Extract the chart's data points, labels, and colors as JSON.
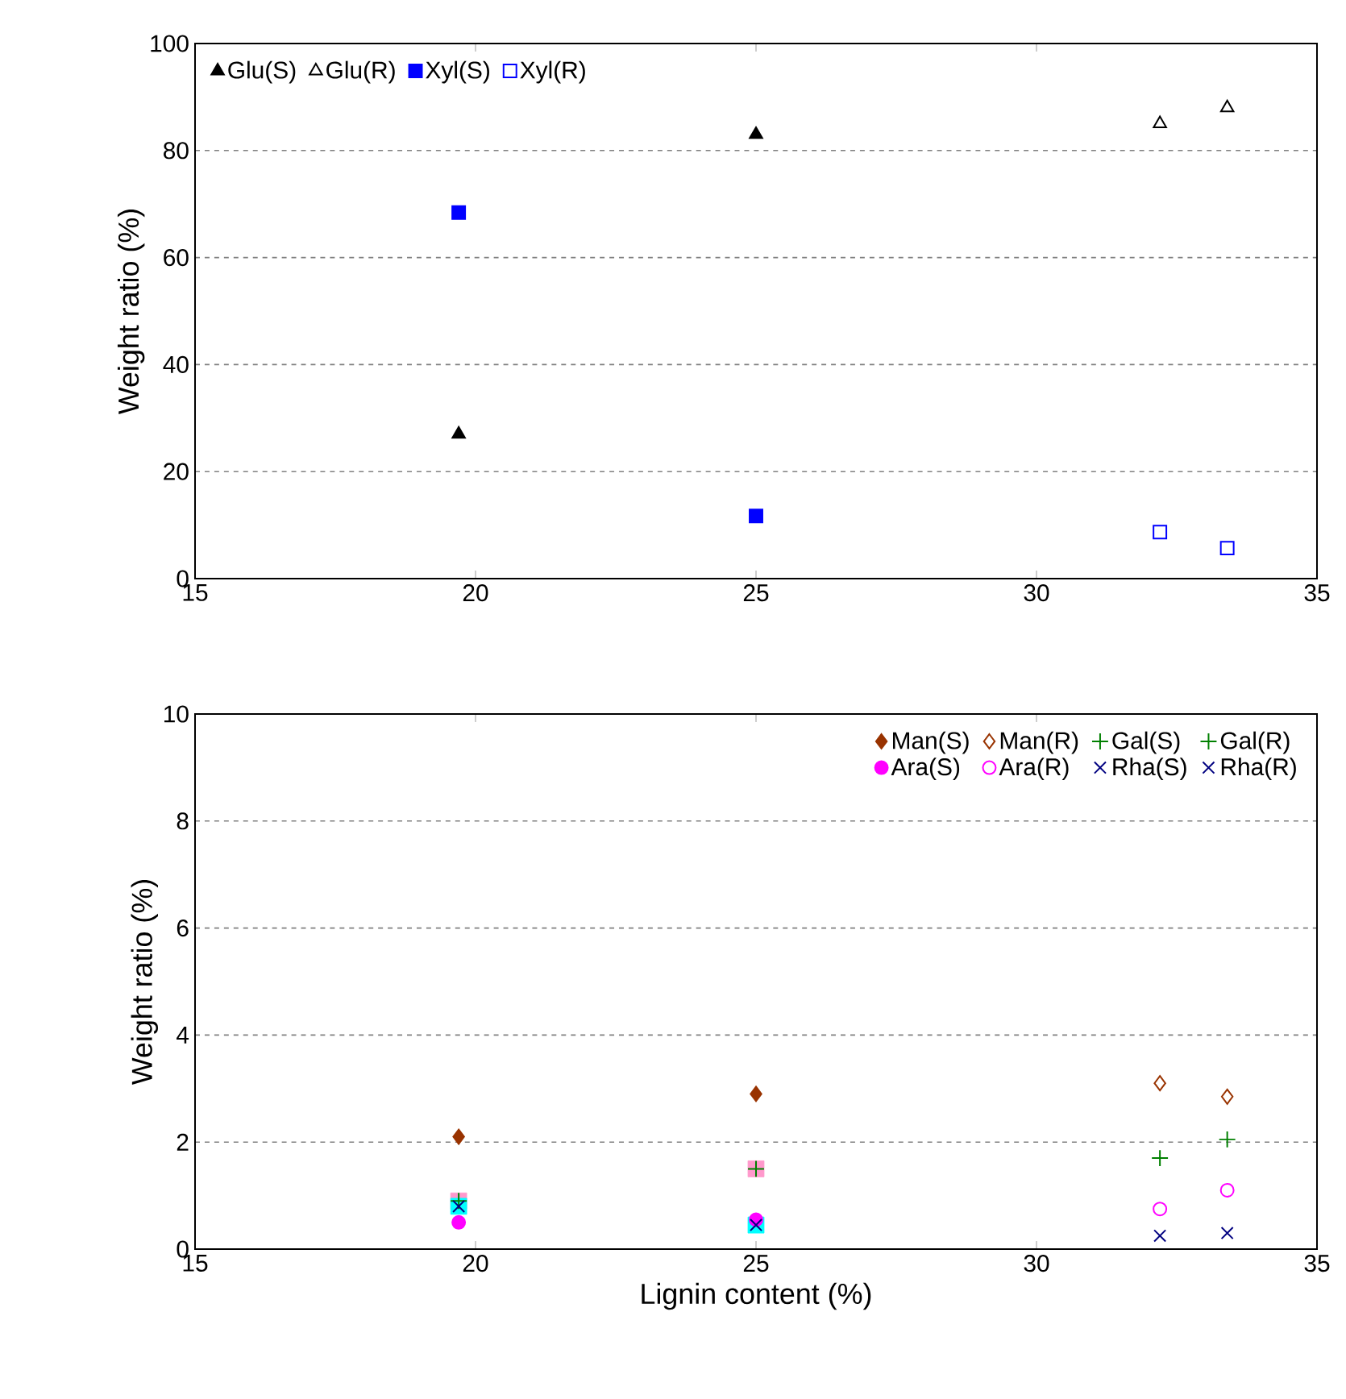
{
  "chart_data": [
    {
      "type": "scatter",
      "ylabel": "Weight ratio (%)",
      "xlim": [
        15,
        35
      ],
      "xticks": [
        15,
        20,
        25,
        30,
        35
      ],
      "ylim": [
        0,
        100
      ],
      "yticks": [
        0,
        20,
        40,
        60,
        80,
        100
      ],
      "grid": "y",
      "legend": "top left",
      "series": [
        {
          "name": "Glu(S)",
          "color": "#000000",
          "marker": "triangle",
          "x": [
            19.7,
            25
          ],
          "values": [
            27,
            83
          ]
        },
        {
          "name": "Glu(R)",
          "color": "#000000",
          "marker": "triangle",
          "x": [
            32.2,
            33.4
          ],
          "values": [
            85,
            88
          ]
        },
        {
          "name": "Xyl(S)",
          "color": "#0000ff",
          "marker": "square",
          "x": [
            19.7,
            25
          ],
          "values": [
            68.4,
            11.7
          ]
        },
        {
          "name": "Xyl(R)",
          "color": "#0000ff",
          "marker": "square",
          "x": [
            32.2,
            33.4
          ],
          "values": [
            8.7,
            5.7
          ]
        }
      ]
    },
    {
      "type": "scatter",
      "xlabel": "Lignin content (%)",
      "ylabel": "Weight ratio (%)",
      "xlim": [
        15,
        35
      ],
      "xticks": [
        15,
        20,
        25,
        30,
        35
      ],
      "ylim": [
        0,
        10
      ],
      "yticks": [
        0,
        2,
        4,
        6,
        8,
        10
      ],
      "grid": "y",
      "legend": "top right",
      "series": [
        {
          "name": "Man(S)",
          "color": "#993300",
          "marker": "diamond",
          "x": [
            19.7,
            25
          ],
          "values": [
            2.1,
            2.9
          ]
        },
        {
          "name": "Man(R)",
          "color": "#993300",
          "marker": "diamond",
          "x": [
            32.2,
            33.4
          ],
          "values": [
            3.1,
            2.85
          ]
        },
        {
          "color": "#ff99cc",
          "marker": "square",
          "x": [
            19.7,
            25
          ],
          "values": [
            0.9,
            1.5
          ]
        },
        {
          "name": "Gal(S)",
          "color": "#008000",
          "marker": "plus",
          "x": [
            19.7,
            25
          ],
          "values": [
            0.9,
            1.5
          ]
        },
        {
          "name": "Gal(R)",
          "color": "#008000",
          "marker": "plus",
          "x": [
            32.2,
            33.4
          ],
          "values": [
            1.7,
            2.05
          ]
        },
        {
          "name": "Ara(S)",
          "color": "#ff00ff",
          "marker": "circle",
          "x": [
            19.7,
            25
          ],
          "values": [
            0.5,
            0.55
          ]
        },
        {
          "name": "Ara(R)",
          "color": "#ff00ff",
          "marker": "circle",
          "x": [
            32.2,
            33.4
          ],
          "values": [
            0.75,
            1.1
          ]
        },
        {
          "color": "#00ffff",
          "marker": "square",
          "x": [
            19.7,
            25
          ],
          "values": [
            0.8,
            0.45
          ]
        },
        {
          "name": "Rha(S)",
          "color": "#000080",
          "marker": "cross",
          "x": [
            19.7,
            25
          ],
          "values": [
            0.8,
            0.45
          ]
        },
        {
          "name": "Rha(R)",
          "color": "#000080",
          "marker": "cross",
          "x": [
            32.2,
            33.4
          ],
          "values": [
            0.25,
            0.3
          ]
        }
      ]
    }
  ]
}
